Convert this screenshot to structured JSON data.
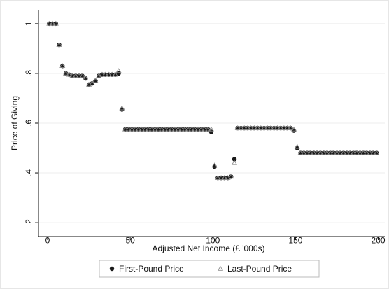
{
  "chart_data": {
    "type": "scatter",
    "x_label": "Adjusted Net Income (£ '000s)",
    "y_label": "Price of Giving",
    "x": [
      1,
      3,
      5,
      7,
      9,
      11,
      13,
      15,
      17,
      19,
      21,
      23,
      25,
      27,
      29,
      31,
      33,
      35,
      37,
      39,
      41,
      43,
      45,
      47,
      49,
      51,
      53,
      55,
      57,
      59,
      61,
      63,
      65,
      67,
      69,
      71,
      73,
      75,
      77,
      79,
      81,
      83,
      85,
      87,
      89,
      91,
      93,
      95,
      97,
      99,
      101,
      103,
      105,
      107,
      109,
      111,
      113,
      115,
      117,
      119,
      121,
      123,
      125,
      127,
      129,
      131,
      133,
      135,
      137,
      139,
      141,
      143,
      145,
      147,
      149,
      151,
      153,
      155,
      157,
      159,
      161,
      163,
      165,
      167,
      169,
      171,
      173,
      175,
      177,
      179,
      181,
      183,
      185,
      187,
      189,
      191,
      193,
      195,
      197,
      199
    ],
    "series": [
      {
        "name": "First-Pound Price",
        "color": "#1a1a1a",
        "marker": "circle",
        "values": [
          1,
          1,
          1,
          0.915,
          0.83,
          0.8,
          0.795,
          0.79,
          0.79,
          0.79,
          0.79,
          0.78,
          0.755,
          0.76,
          0.77,
          0.79,
          0.795,
          0.795,
          0.795,
          0.795,
          0.795,
          0.8,
          0.655,
          0.575,
          0.575,
          0.575,
          0.575,
          0.575,
          0.575,
          0.575,
          0.575,
          0.575,
          0.575,
          0.575,
          0.575,
          0.575,
          0.575,
          0.575,
          0.575,
          0.575,
          0.575,
          0.575,
          0.575,
          0.575,
          0.575,
          0.575,
          0.575,
          0.575,
          0.575,
          0.565,
          0.425,
          0.38,
          0.38,
          0.38,
          0.38,
          0.385,
          0.455,
          0.58,
          0.58,
          0.58,
          0.58,
          0.58,
          0.58,
          0.58,
          0.58,
          0.58,
          0.58,
          0.58,
          0.58,
          0.58,
          0.58,
          0.58,
          0.58,
          0.58,
          0.57,
          0.5,
          0.48,
          0.48,
          0.48,
          0.48,
          0.48,
          0.48,
          0.48,
          0.48,
          0.48,
          0.48,
          0.48,
          0.48,
          0.48,
          0.48,
          0.48,
          0.48,
          0.48,
          0.48,
          0.48,
          0.48,
          0.48,
          0.48,
          0.48,
          0.48
        ]
      },
      {
        "name": "Last-Pound Price",
        "color": "#8c8c8c",
        "marker": "triangle",
        "values": [
          1,
          1,
          1,
          0.915,
          0.83,
          0.8,
          0.795,
          0.79,
          0.79,
          0.79,
          0.79,
          0.78,
          0.755,
          0.76,
          0.77,
          0.79,
          0.795,
          0.795,
          0.795,
          0.795,
          0.795,
          0.81,
          0.66,
          0.575,
          0.575,
          0.575,
          0.575,
          0.575,
          0.575,
          0.575,
          0.575,
          0.575,
          0.575,
          0.575,
          0.575,
          0.575,
          0.575,
          0.575,
          0.575,
          0.575,
          0.575,
          0.575,
          0.575,
          0.575,
          0.575,
          0.575,
          0.575,
          0.575,
          0.575,
          0.575,
          0.43,
          0.38,
          0.38,
          0.38,
          0.38,
          0.385,
          0.44,
          0.58,
          0.58,
          0.58,
          0.58,
          0.58,
          0.58,
          0.58,
          0.58,
          0.58,
          0.58,
          0.58,
          0.58,
          0.58,
          0.58,
          0.58,
          0.58,
          0.58,
          0.575,
          0.505,
          0.48,
          0.48,
          0.48,
          0.48,
          0.48,
          0.48,
          0.48,
          0.48,
          0.48,
          0.48,
          0.48,
          0.48,
          0.48,
          0.48,
          0.48,
          0.48,
          0.48,
          0.48,
          0.48,
          0.48,
          0.48,
          0.48,
          0.48,
          0.48
        ]
      }
    ],
    "xlim": [
      -5.5,
      204
    ],
    "xticks": [
      0,
      50,
      100,
      150,
      200
    ],
    "ylim": [
      0.144,
      1.056
    ],
    "yticks": [
      {
        "value": 0.2,
        "label": ".2"
      },
      {
        "value": 0.4,
        "label": ".4"
      },
      {
        "value": 0.6,
        "label": ".6"
      },
      {
        "value": 0.8,
        "label": ".8"
      },
      1
    ],
    "grid": true,
    "legend": "bottom"
  }
}
